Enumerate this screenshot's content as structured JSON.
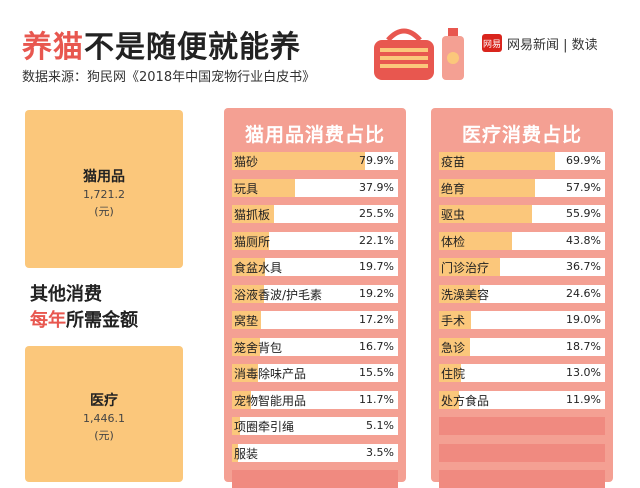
{
  "header": {
    "title_accent": "养猫",
    "title_rest": "不是随便就能养",
    "source": "数据来源：狗民网《2018年中国宠物行业白皮书》",
    "brand_logo": "网易",
    "brand_text": "网易新闻 | 数读"
  },
  "summary": {
    "supplies": {
      "name": "猫用品",
      "amount": "1,721.2",
      "unit": "(元)"
    },
    "medical": {
      "name": "医疗",
      "amount": "1,446.1",
      "unit": "(元)"
    },
    "mid_line1": "其他消费",
    "mid_accent": "每年",
    "mid_rest": "所需金额"
  },
  "colors": {
    "accent": "#e8574f",
    "bar": "#fbc77b",
    "panel": "#f4a093"
  },
  "chart_data": [
    {
      "type": "bar",
      "title": "猫用品消费占比",
      "categories": [
        "猫砂",
        "玩具",
        "猫抓板",
        "猫厕所",
        "食盆水具",
        "浴液香波/护毛素",
        "窝垫",
        "笼舍背包",
        "消毒除味产品",
        "宠物智能用品",
        "项圈牵引绳",
        "服装"
      ],
      "values": [
        79.9,
        37.9,
        25.5,
        22.1,
        19.7,
        19.2,
        17.2,
        16.7,
        15.5,
        11.7,
        5.1,
        3.5
      ],
      "value_labels": [
        "79.9%",
        "37.9%",
        "25.5%",
        "22.1%",
        "19.7%",
        "19.2%",
        "17.2%",
        "16.7%",
        "15.5%",
        "11.7%",
        "5.1%",
        "3.5%"
      ],
      "ylim": [
        0,
        100
      ]
    },
    {
      "type": "bar",
      "title": "医疗消费占比",
      "categories": [
        "疫苗",
        "绝育",
        "驱虫",
        "体检",
        "门诊治疗",
        "洗澡美容",
        "手术",
        "急诊",
        "住院",
        "处方食品"
      ],
      "values": [
        69.9,
        57.9,
        55.9,
        43.8,
        36.7,
        24.6,
        19.0,
        18.7,
        13.0,
        11.9
      ],
      "value_labels": [
        "69.9%",
        "57.9%",
        "55.9%",
        "43.8%",
        "36.7%",
        "24.6%",
        "19.0%",
        "18.7%",
        "13.0%",
        "11.9%"
      ],
      "ylim": [
        0,
        100
      ]
    }
  ]
}
